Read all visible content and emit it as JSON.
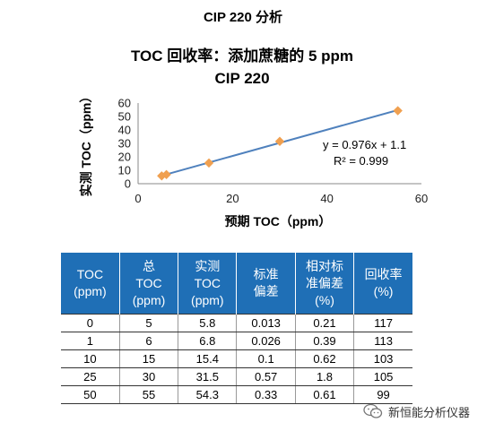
{
  "page": {
    "title": "CIP 220 分析"
  },
  "chart_data": {
    "type": "scatter",
    "title_line1": "TOC 回收率：添加蔗糖的 5 ppm",
    "title_line2": "CIP 220",
    "xlabel": "预期 TOC（ppm）",
    "ylabel": "实测 TOC（ppm）",
    "xlim": [
      0,
      60
    ],
    "ylim": [
      0,
      60
    ],
    "x_ticks": [
      0,
      20,
      40,
      60
    ],
    "y_ticks": [
      0,
      10,
      20,
      30,
      40,
      50,
      60
    ],
    "series": [
      {
        "x": [
          5,
          6,
          15,
          30,
          55
        ],
        "y": [
          5.8,
          6.8,
          15.4,
          31.5,
          54.3
        ],
        "marker": "diamond",
        "color": "#f0a050"
      }
    ],
    "trendline": {
      "slope": 0.976,
      "intercept": 1.1,
      "x_range": [
        5,
        55
      ],
      "color": "#4f81bd"
    },
    "annotation_line1": "y = 0.976x + 1.1",
    "annotation_line2": "R² = 0.999",
    "grid": false
  },
  "table": {
    "headers": [
      [
        "TOC",
        "(ppm)"
      ],
      [
        "总",
        "TOC",
        "(ppm)"
      ],
      [
        "实测",
        "TOC",
        "(ppm)"
      ],
      [
        "标准",
        "偏差"
      ],
      [
        "相对标",
        "准偏差",
        "(%)"
      ],
      [
        "回收率",
        "(%)"
      ]
    ],
    "rows": [
      [
        "0",
        "5",
        "5.8",
        "0.013",
        "0.21",
        "117"
      ],
      [
        "1",
        "6",
        "6.8",
        "0.026",
        "0.39",
        "113"
      ],
      [
        "10",
        "15",
        "15.4",
        "0.1",
        "0.62",
        "103"
      ],
      [
        "25",
        "30",
        "31.5",
        "0.57",
        "1.8",
        "105"
      ],
      [
        "50",
        "55",
        "54.3",
        "0.33",
        "0.61",
        "99"
      ]
    ],
    "header_color": "#1f6fb6"
  },
  "watermark": {
    "text": "新恒能分析仪器",
    "icon": "wechat-icon"
  }
}
